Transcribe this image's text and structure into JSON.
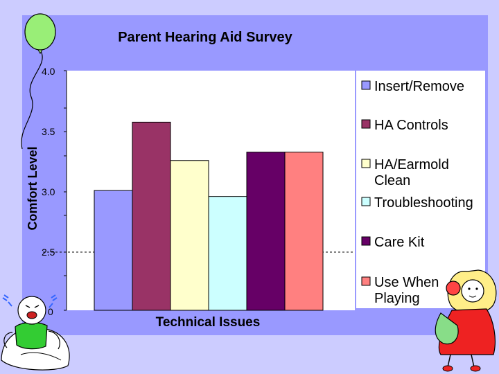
{
  "chart_data": {
    "type": "bar",
    "title": "Parent Hearing Aid Survey",
    "xlabel": "Technical Issues",
    "ylabel": "Comfort Level",
    "ylim": [
      2.0,
      4.0
    ],
    "ticks": [
      "4.0",
      "3.5",
      "3.0",
      "2.5",
      "0"
    ],
    "legend_position": "right",
    "series": [
      {
        "name": "Insert/Remove",
        "value": 3.0,
        "color": "#9999ff"
      },
      {
        "name": "HA Controls",
        "value": 3.57,
        "color": "#993366"
      },
      {
        "name": "HA/Earmold Clean",
        "value": 3.25,
        "color": "#ffffcc"
      },
      {
        "name": "Troubleshooting",
        "value": 2.95,
        "color": "#ccffff"
      },
      {
        "name": "Care Kit",
        "value": 3.32,
        "color": "#660066"
      },
      {
        "name": "Use When Playing",
        "value": 3.32,
        "color": "#ff8080"
      }
    ]
  },
  "colors": {
    "background": "#ccccff",
    "panel": "#9999ff",
    "plot_area": "#ffffff",
    "balloon": "#99ee77"
  }
}
